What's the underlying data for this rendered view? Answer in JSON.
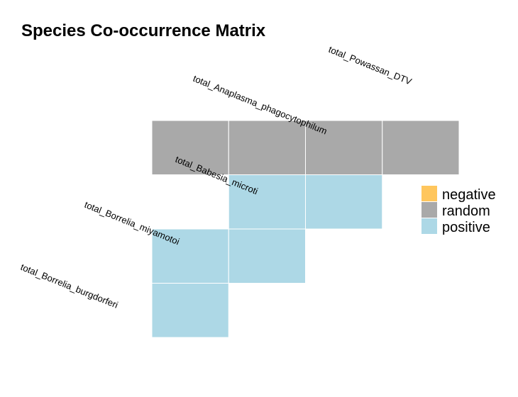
{
  "chart_data": {
    "type": "heatmap",
    "title": "Species Co-occurrence Matrix",
    "species": [
      "total_Borrelia_burgdorferi",
      "total_Borrelia_miyamotoi",
      "total_Babesia_microti",
      "total_Anaplasma_phagocytophilum",
      "total_Powassan_DTV"
    ],
    "cells": [
      {
        "row": "total_Borrelia_miyamotoi",
        "col": "total_Borrelia_burgdorferi",
        "status": "positive"
      },
      {
        "row": "total_Babesia_microti",
        "col": "total_Borrelia_burgdorferi",
        "status": "positive"
      },
      {
        "row": "total_Babesia_microti",
        "col": "total_Borrelia_miyamotoi",
        "status": "positive"
      },
      {
        "row": "total_Anaplasma_phagocytophilum",
        "col": "total_Borrelia_miyamotoi",
        "status": "positive"
      },
      {
        "row": "total_Anaplasma_phagocytophilum",
        "col": "total_Babesia_microti",
        "status": "positive"
      },
      {
        "row": "total_Powassan_DTV",
        "col": "total_Borrelia_burgdorferi",
        "status": "random"
      },
      {
        "row": "total_Powassan_DTV",
        "col": "total_Borrelia_miyamotoi",
        "status": "random"
      },
      {
        "row": "total_Powassan_DTV",
        "col": "total_Babesia_microti",
        "status": "random"
      },
      {
        "row": "total_Powassan_DTV",
        "col": "total_Anaplasma_phagocytophilum",
        "status": "random"
      }
    ],
    "legend": [
      {
        "label": "negative",
        "color": "#FFC65D"
      },
      {
        "label": "random",
        "color": "#A9A9A9"
      },
      {
        "label": "positive",
        "color": "#ADD8E6"
      }
    ],
    "legend_position": "right"
  }
}
